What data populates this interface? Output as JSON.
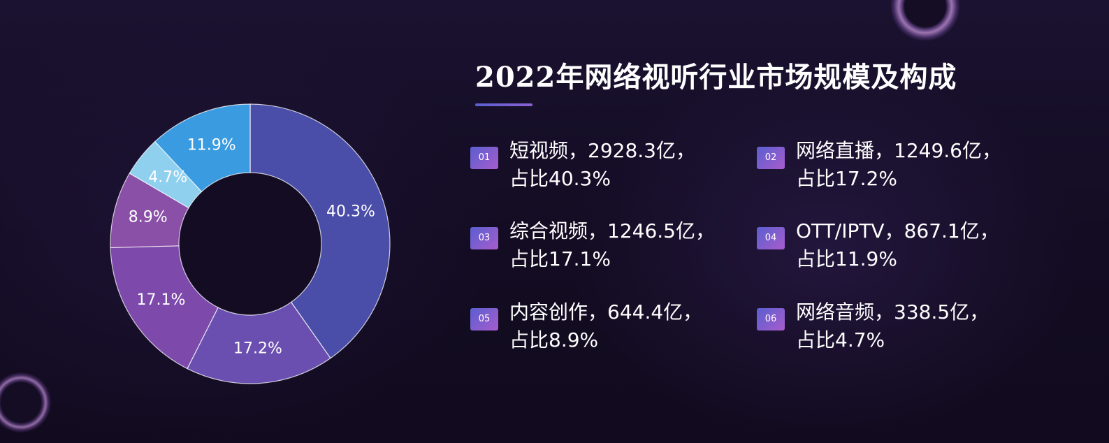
{
  "title": "2022年网络视听行业市场规模及构成",
  "colors": {
    "background": "#140d24",
    "title_underline": "#8a62d0",
    "badge_gradient": [
      "#5a5fd0",
      "#a85ccc"
    ]
  },
  "chart_data": {
    "type": "pie",
    "variant": "donut",
    "title": "2022年网络视听行业市场规模及构成",
    "slices": [
      {
        "id": "01",
        "name": "短视频",
        "value": 2928.3,
        "unit": "亿",
        "share": 40.3,
        "label": "40.3%",
        "color": "#4a4ea8"
      },
      {
        "id": "02",
        "name": "网络直播",
        "value": 1249.6,
        "unit": "亿",
        "share": 17.2,
        "label": "17.2%",
        "color": "#6a4fb0"
      },
      {
        "id": "03",
        "name": "综合视频",
        "value": 1246.5,
        "unit": "亿",
        "share": 17.1,
        "label": "17.1%",
        "color": "#7d4aac"
      },
      {
        "id": "05",
        "name": "内容创作",
        "value": 644.4,
        "unit": "亿",
        "share": 8.9,
        "label": "8.9%",
        "color": "#8a4fa6"
      },
      {
        "id": "06",
        "name": "网络音频",
        "value": 338.5,
        "unit": "亿",
        "share": 4.7,
        "label": "4.7%",
        "color": "#8fd0ef"
      },
      {
        "id": "04",
        "name": "OTT/IPTV",
        "value": 867.1,
        "unit": "亿",
        "share": 11.9,
        "label": "11.9%",
        "color": "#3a9be0"
      }
    ]
  },
  "legend": {
    "items": [
      {
        "badge": "01",
        "line1": "短视频，2928.3亿，",
        "line2": "占比40.3%"
      },
      {
        "badge": "02",
        "line1": "网络直播，1249.6亿，",
        "line2": "占比17.2%"
      },
      {
        "badge": "03",
        "line1": "综合视频，1246.5亿，",
        "line2": "占比17.1%"
      },
      {
        "badge": "04",
        "line1": "OTT/IPTV，867.1亿，",
        "line2": "占比11.9%"
      },
      {
        "badge": "05",
        "line1": "内容创作，644.4亿，",
        "line2": "占比8.9%"
      },
      {
        "badge": "06",
        "line1": "网络音频，338.5亿，",
        "line2": "占比4.7%"
      }
    ]
  }
}
